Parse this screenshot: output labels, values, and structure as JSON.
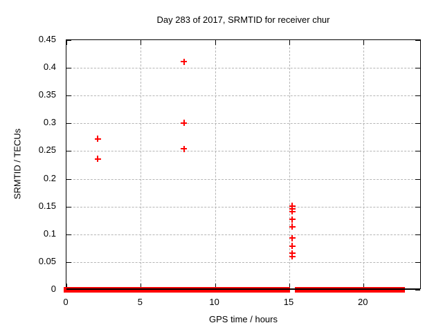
{
  "chart_data": {
    "type": "scatter",
    "title": "Day 283 of 2017, SRMTID for receiver chur",
    "xlabel": "GPS time / hours",
    "ylabel": "SRMTID / TECUs",
    "xlim": [
      0,
      23.9
    ],
    "ylim": [
      0,
      0.45
    ],
    "x_ticks": [
      0,
      5,
      10,
      15,
      20
    ],
    "x_tick_labels": [
      "0",
      "5",
      "10",
      "15",
      "20"
    ],
    "y_ticks": [
      0,
      0.05,
      0.1,
      0.15,
      0.2,
      0.25,
      0.3,
      0.35,
      0.4,
      0.45
    ],
    "y_tick_labels": [
      "0",
      "0.05",
      "0.1",
      "0.15",
      "0.2",
      "0.25",
      "0.3",
      "0.35",
      "0.4",
      "0.45"
    ],
    "grid": true,
    "legend": "none",
    "marker": "plus",
    "colors": {
      "marker": "#ff0000",
      "grid": "#b5b5b5",
      "axis": "#000000",
      "text": "#000000"
    },
    "series": [
      {
        "name": "SRMTID",
        "points": [
          [
            2.1,
            0.272
          ],
          [
            2.1,
            0.236
          ],
          [
            7.9,
            0.411
          ],
          [
            7.9,
            0.301
          ],
          [
            7.9,
            0.254
          ],
          [
            15.2,
            0.151
          ],
          [
            15.2,
            0.146
          ],
          [
            15.2,
            0.141
          ],
          [
            15.2,
            0.127
          ],
          [
            15.2,
            0.114
          ],
          [
            15.2,
            0.093
          ],
          [
            15.2,
            0.079
          ],
          [
            15.2,
            0.066
          ],
          [
            15.2,
            0.06
          ]
        ]
      }
    ],
    "zero_value_band": {
      "y": 0,
      "segments_hours": [
        [
          0,
          15.07
        ],
        [
          15.36,
          22.6
        ]
      ],
      "description": "continuous run of zero-valued points plotted along y=0"
    }
  }
}
